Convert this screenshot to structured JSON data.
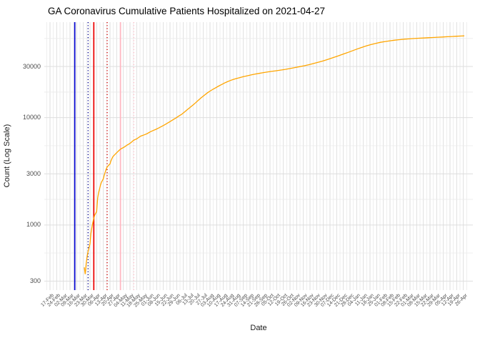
{
  "title": "GA Coronavirus Cumulative Patients Hospitalized on 2021-04-27",
  "chart_data": {
    "type": "line",
    "title": "GA Coronavirus Cumulative Patients Hospitalized on 2021-04-27",
    "xlabel": "Date",
    "ylabel": "Count (Log Scale)",
    "y_scale": "log10",
    "grid": "on",
    "legend": "none",
    "line_color": "#FFA500",
    "y_domain": [
      247,
      77700
    ],
    "y_ticks": [
      300,
      1000,
      3000,
      10000,
      30000
    ],
    "y_tick_labels": [
      "300",
      "1000",
      "3000",
      "10000",
      "30000"
    ],
    "y_minor_gridlines": [
      548,
      1732,
      5477,
      17321,
      54772
    ],
    "x_domain": [
      "2020-02-11",
      "2021-05-06"
    ],
    "x_first_tick": "2020-02-17",
    "x_tick_interval_days": 7,
    "x_tick_labels": [
      "17-Feb",
      "24-Feb",
      "02-Mar",
      "09-Mar",
      "16-Mar",
      "23-Mar",
      "30-Mar",
      "06-Apr",
      "13-Apr",
      "20-Apr",
      "27-Apr",
      "04-May",
      "11-May",
      "18-May",
      "25-May",
      "01-Jun",
      "08-Jun",
      "15-Jun",
      "22-Jun",
      "29-Jun",
      "06-Jul",
      "13-Jul",
      "20-Jul",
      "27-Jul",
      "03-Aug",
      "10-Aug",
      "17-Aug",
      "24-Aug",
      "31-Aug",
      "07-Sep",
      "14-Sep",
      "21-Sep",
      "28-Sep",
      "05-Oct",
      "12-Oct",
      "19-Oct",
      "26-Oct",
      "02-Nov",
      "09-Nov",
      "16-Nov",
      "23-Nov",
      "30-Nov",
      "07-Dec",
      "14-Dec",
      "21-Dec",
      "28-Dec",
      "04-Jan",
      "11-Jan",
      "18-Jan",
      "25-Jan",
      "01-Feb",
      "08-Feb",
      "15-Feb",
      "22-Feb",
      "01-Mar",
      "08-Mar",
      "15-Mar",
      "22-Mar",
      "29-Mar",
      "05-Apr",
      "12-Apr",
      "19-Apr",
      "26-Apr"
    ],
    "vlines": [
      {
        "date": "2020-03-14",
        "color": "#0000CC",
        "style": "solid",
        "name": "event-line-blue-solid"
      },
      {
        "date": "2020-03-28",
        "color": "#00008B",
        "style": "dotted",
        "name": "event-line-blue-dotted"
      },
      {
        "date": "2020-04-03",
        "color": "#EE0000",
        "style": "solid",
        "name": "event-line-red-solid"
      },
      {
        "date": "2020-04-17",
        "color": "#CC0000",
        "style": "dotted",
        "name": "event-line-red-dotted"
      },
      {
        "date": "2020-05-01",
        "color": "#FFB6C1",
        "style": "solid",
        "name": "event-line-pink-solid"
      },
      {
        "date": "2020-05-15",
        "color": "#FFC0CB",
        "style": "dotted",
        "name": "event-line-pink-dotted"
      }
    ],
    "series": [
      {
        "name": "cumulative-patients-hospitalized",
        "color": "#FFA500",
        "points": [
          [
            "2020-03-24",
            403
          ],
          [
            "2020-03-25",
            348
          ],
          [
            "2020-03-26",
            440
          ],
          [
            "2020-03-27",
            509
          ],
          [
            "2020-03-28",
            566
          ],
          [
            "2020-03-29",
            617
          ],
          [
            "2020-03-30",
            666
          ],
          [
            "2020-03-31",
            833
          ],
          [
            "2020-04-01",
            952
          ],
          [
            "2020-04-02",
            1056
          ],
          [
            "2020-04-03",
            1158
          ],
          [
            "2020-04-04",
            1239
          ],
          [
            "2020-04-05",
            1283
          ],
          [
            "2020-04-06",
            1332
          ],
          [
            "2020-04-07",
            1774
          ],
          [
            "2020-04-08",
            1993
          ],
          [
            "2020-04-09",
            2159
          ],
          [
            "2020-04-10",
            2351
          ],
          [
            "2020-04-11",
            2505
          ],
          [
            "2020-04-12",
            2589
          ],
          [
            "2020-04-13",
            2702
          ],
          [
            "2020-04-14",
            2922
          ],
          [
            "2020-04-15",
            3108
          ],
          [
            "2020-04-16",
            3324
          ],
          [
            "2020-04-17",
            3464
          ],
          [
            "2020-04-18",
            3550
          ],
          [
            "2020-04-19",
            3642
          ],
          [
            "2020-04-20",
            3702
          ],
          [
            "2020-04-21",
            3959
          ],
          [
            "2020-04-22",
            4154
          ],
          [
            "2020-04-23",
            4326
          ],
          [
            "2020-04-24",
            4430
          ],
          [
            "2020-04-25",
            4523
          ],
          [
            "2020-04-26",
            4618
          ],
          [
            "2020-04-28",
            4814
          ],
          [
            "2020-04-30",
            5000
          ],
          [
            "2020-05-02",
            5156
          ],
          [
            "2020-05-04",
            5269
          ],
          [
            "2020-05-06",
            5393
          ],
          [
            "2020-05-08",
            5561
          ],
          [
            "2020-05-10",
            5696
          ],
          [
            "2020-05-12",
            5856
          ],
          [
            "2020-05-14",
            6069
          ],
          [
            "2020-05-16",
            6239
          ],
          [
            "2020-05-18",
            6339
          ],
          [
            "2020-05-20",
            6523
          ],
          [
            "2020-05-22",
            6719
          ],
          [
            "2020-05-24",
            6824
          ],
          [
            "2020-05-26",
            6916
          ],
          [
            "2020-05-29",
            7107
          ],
          [
            "2020-06-01",
            7361
          ],
          [
            "2020-06-04",
            7571
          ],
          [
            "2020-06-07",
            7779
          ],
          [
            "2020-06-10",
            8004
          ],
          [
            "2020-06-13",
            8267
          ],
          [
            "2020-06-16",
            8553
          ],
          [
            "2020-06-19",
            8856
          ],
          [
            "2020-06-22",
            9184
          ],
          [
            "2020-06-25",
            9546
          ],
          [
            "2020-06-28",
            9900
          ],
          [
            "2020-07-01",
            10320
          ],
          [
            "2020-07-04",
            10720
          ],
          [
            "2020-07-07",
            11250
          ],
          [
            "2020-07-10",
            11850
          ],
          [
            "2020-07-13",
            12450
          ],
          [
            "2020-07-16",
            13100
          ],
          [
            "2020-07-19",
            13800
          ],
          [
            "2020-07-22",
            14600
          ],
          [
            "2020-07-25",
            15400
          ],
          [
            "2020-07-28",
            16150
          ],
          [
            "2020-07-31",
            16960
          ],
          [
            "2020-08-03",
            17700
          ],
          [
            "2020-08-06",
            18390
          ],
          [
            "2020-08-09",
            19000
          ],
          [
            "2020-08-12",
            19700
          ],
          [
            "2020-08-15",
            20350
          ],
          [
            "2020-08-18",
            21000
          ],
          [
            "2020-08-21",
            21600
          ],
          [
            "2020-08-24",
            22150
          ],
          [
            "2020-08-27",
            22650
          ],
          [
            "2020-08-30",
            23100
          ],
          [
            "2020-09-03",
            23600
          ],
          [
            "2020-09-07",
            24100
          ],
          [
            "2020-09-11",
            24550
          ],
          [
            "2020-09-15",
            25000
          ],
          [
            "2020-09-19",
            25450
          ],
          [
            "2020-09-23",
            25850
          ],
          [
            "2020-09-27",
            26200
          ],
          [
            "2020-10-01",
            26550
          ],
          [
            "2020-10-06",
            26950
          ],
          [
            "2020-10-11",
            27350
          ],
          [
            "2020-10-16",
            27750
          ],
          [
            "2020-10-21",
            28200
          ],
          [
            "2020-10-26",
            28700
          ],
          [
            "2020-10-31",
            29300
          ],
          [
            "2020-11-05",
            29900
          ],
          [
            "2020-11-10",
            30500
          ],
          [
            "2020-11-15",
            31200
          ],
          [
            "2020-11-20",
            32000
          ],
          [
            "2020-11-25",
            32900
          ],
          [
            "2020-11-30",
            33900
          ],
          [
            "2020-12-05",
            35000
          ],
          [
            "2020-12-10",
            36200
          ],
          [
            "2020-12-15",
            37500
          ],
          [
            "2020-12-20",
            38900
          ],
          [
            "2020-12-25",
            40300
          ],
          [
            "2020-12-30",
            41900
          ],
          [
            "2021-01-04",
            43500
          ],
          [
            "2021-01-09",
            45100
          ],
          [
            "2021-01-14",
            46600
          ],
          [
            "2021-01-19",
            48000
          ],
          [
            "2021-01-24",
            49300
          ],
          [
            "2021-01-29",
            50400
          ],
          [
            "2021-02-03",
            51300
          ],
          [
            "2021-02-08",
            52100
          ],
          [
            "2021-02-13",
            52800
          ],
          [
            "2021-02-18",
            53400
          ],
          [
            "2021-02-23",
            53900
          ],
          [
            "2021-02-28",
            54300
          ],
          [
            "2021-03-05",
            54700
          ],
          [
            "2021-03-10",
            55000
          ],
          [
            "2021-03-15",
            55300
          ],
          [
            "2021-03-20",
            55600
          ],
          [
            "2021-03-25",
            55900
          ],
          [
            "2021-03-30",
            56200
          ],
          [
            "2021-04-04",
            56500
          ],
          [
            "2021-04-09",
            56800
          ],
          [
            "2021-04-14",
            57100
          ],
          [
            "2021-04-19",
            57400
          ],
          [
            "2021-04-24",
            57700
          ],
          [
            "2021-04-27",
            57900
          ]
        ]
      }
    ],
    "gridline_major_color": "#dedede",
    "gridline_minor_color": "#ececec"
  }
}
